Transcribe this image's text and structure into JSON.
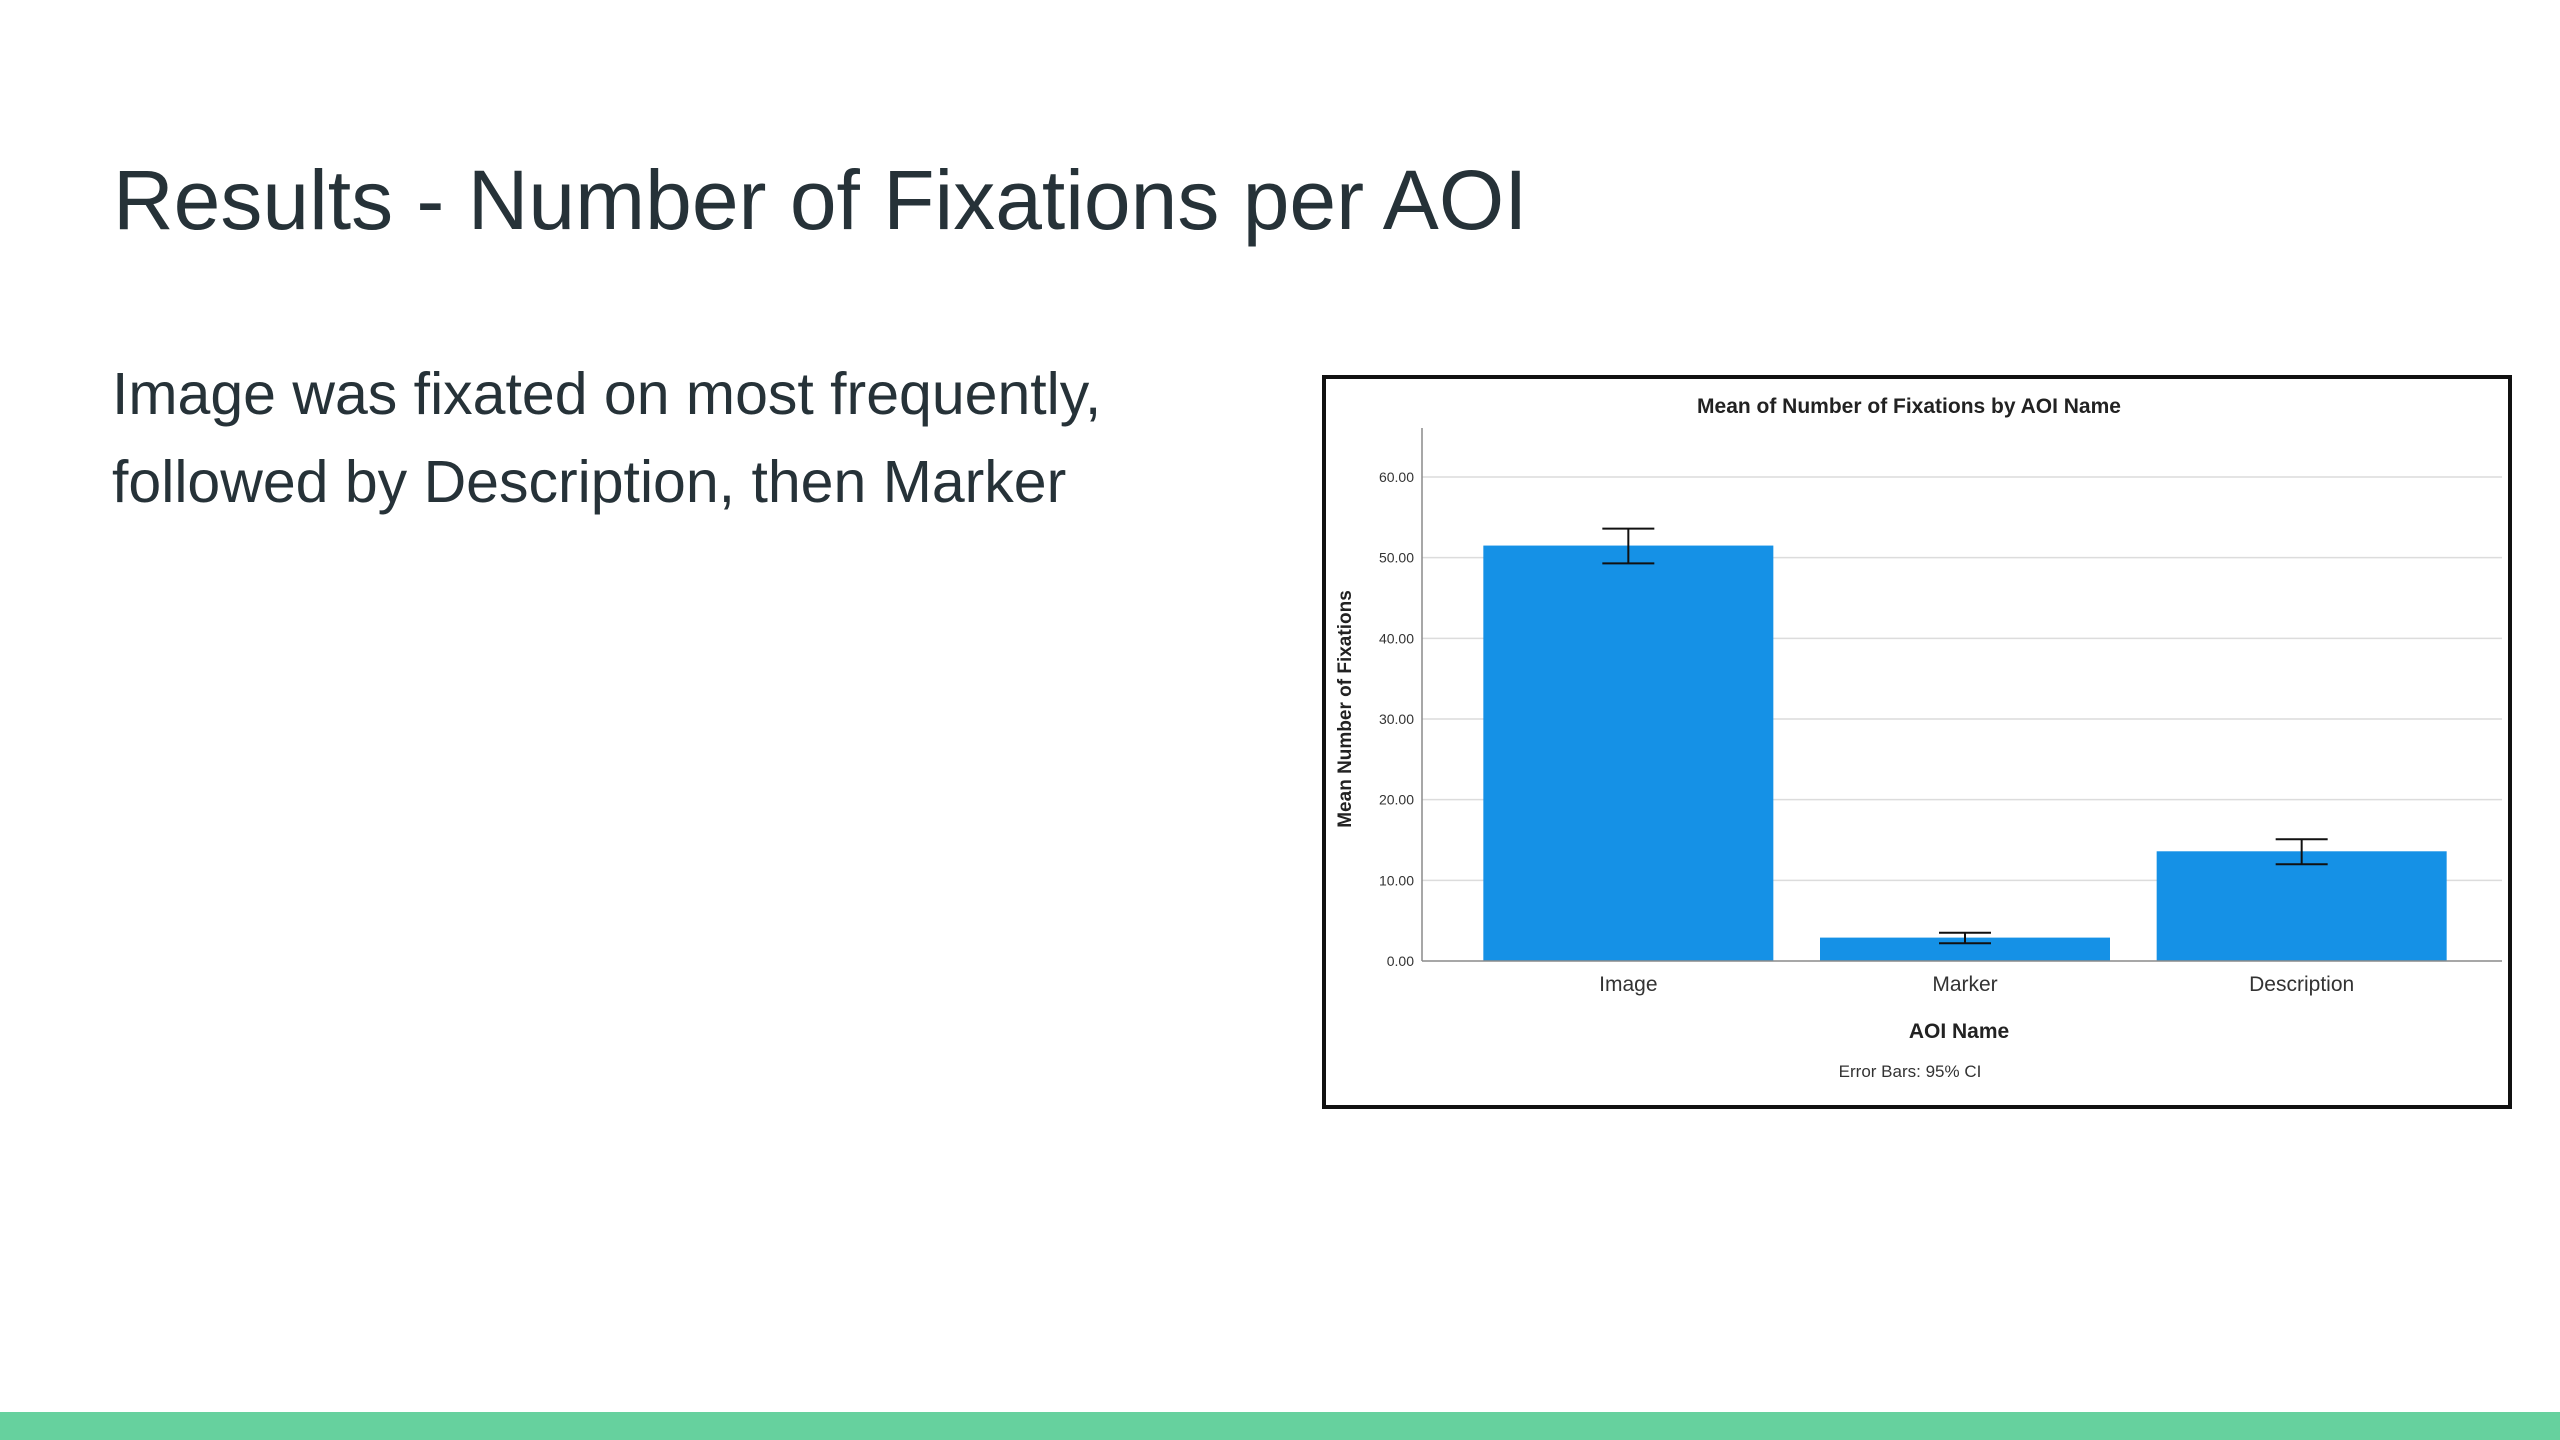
{
  "slide": {
    "title": "Results - Number of Fixations per AOI",
    "body_lines": [
      "Image was fixated on most frequently,",
      "followed by Description, then Marker"
    ],
    "footer_color": "#66d19e"
  },
  "chart_data": {
    "type": "bar",
    "title": "Mean of Number of Fixations by AOI Name",
    "xlabel": "AOI Name",
    "ylabel": "Mean Number of Fixations",
    "categories": [
      "Image",
      "Marker",
      "Description"
    ],
    "values": [
      51.5,
      2.9,
      13.6
    ],
    "error_low": [
      49.3,
      2.2,
      12.0
    ],
    "error_high": [
      53.6,
      3.5,
      15.1
    ],
    "ylim": [
      0,
      60
    ],
    "yticks": [
      0,
      10,
      20,
      30,
      40,
      50,
      60
    ],
    "ytick_labels": [
      "0.00",
      "10.00",
      "20.00",
      "30.00",
      "40.00",
      "50.00",
      "60.00"
    ],
    "grid": true,
    "bar_color": "#1591e6",
    "footnote": "Error Bars: 95% CI"
  }
}
